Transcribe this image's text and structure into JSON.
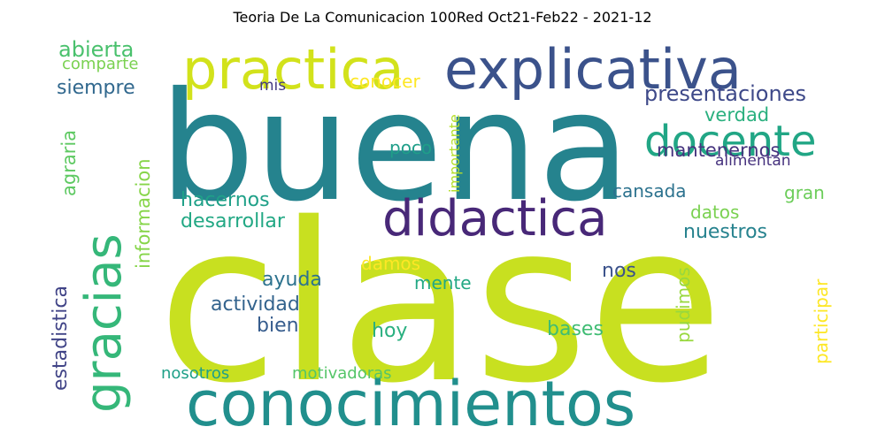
{
  "chart_data": {
    "type": "wordcloud",
    "title": "Teoria De La Comunicacion 100Red Oct21-Feb22 - 2021-12",
    "words": [
      {
        "text": "clase",
        "color": "#c8e020"
      },
      {
        "text": "buena",
        "color": "#25838e"
      },
      {
        "text": "conocimientos",
        "color": "#218f8d"
      },
      {
        "text": "practica",
        "color": "#d2e21b"
      },
      {
        "text": "explicativa",
        "color": "#3b528b"
      },
      {
        "text": "gracias",
        "color": "#35b779"
      },
      {
        "text": "didactica",
        "color": "#482878"
      },
      {
        "text": "docente",
        "color": "#21a685"
      },
      {
        "text": "abierta",
        "color": "#4ac16d"
      },
      {
        "text": "comparte",
        "color": "#7ad151"
      },
      {
        "text": "siempre",
        "color": "#31688e"
      },
      {
        "text": "mis",
        "color": "#443a83"
      },
      {
        "text": "conocer",
        "color": "#fde725"
      },
      {
        "text": "importante",
        "color": "#b5de2b"
      },
      {
        "text": "presentaciones",
        "color": "#3e4989"
      },
      {
        "text": "verdad",
        "color": "#2ab07f"
      },
      {
        "text": "agraria",
        "color": "#5ec962"
      },
      {
        "text": "informacion",
        "color": "#86d549"
      },
      {
        "text": "poco",
        "color": "#1f9e89"
      },
      {
        "text": "alimentan",
        "color": "#46327e"
      },
      {
        "text": "mantenernos",
        "color": "#46337e"
      },
      {
        "text": "hacernos",
        "color": "#1fa088"
      },
      {
        "text": "cansada",
        "color": "#2c728e"
      },
      {
        "text": "gran",
        "color": "#6ccd5a"
      },
      {
        "text": "datos",
        "color": "#7ad151"
      },
      {
        "text": "desarrollar",
        "color": "#22a884"
      },
      {
        "text": "nuestros",
        "color": "#26828e"
      },
      {
        "text": "participar",
        "color": "#fde725"
      },
      {
        "text": "estadistica",
        "color": "#414487"
      },
      {
        "text": "damos",
        "color": "#fde725"
      },
      {
        "text": "pudimos",
        "color": "#98d83e"
      },
      {
        "text": "ayuda",
        "color": "#2c728e"
      },
      {
        "text": "nos",
        "color": "#3b528b"
      },
      {
        "text": "mente",
        "color": "#22a884"
      },
      {
        "text": "actividad",
        "color": "#33638d"
      },
      {
        "text": "bien",
        "color": "#365c8d"
      },
      {
        "text": "hoy",
        "color": "#29af7f"
      },
      {
        "text": "bases",
        "color": "#3fbc73"
      },
      {
        "text": "nosotros",
        "color": "#1fa088"
      },
      {
        "text": "motivadoras",
        "color": "#54c568"
      }
    ]
  }
}
